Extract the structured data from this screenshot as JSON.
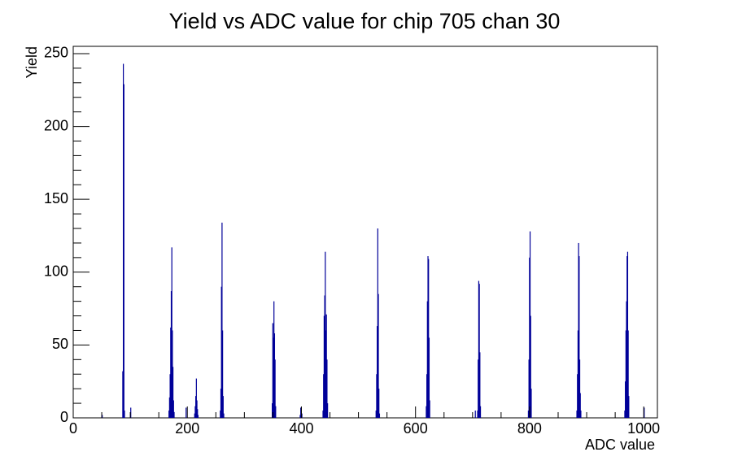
{
  "chart_data": {
    "type": "bar",
    "title": "Yield vs ADC value for chip 705 chan 30",
    "x_label": "ADC value",
    "y_label": "Yield",
    "color": "#000099",
    "x": [
      50,
      86,
      87,
      88,
      89,
      100,
      167,
      168,
      169,
      170,
      171,
      172,
      173,
      174,
      175,
      176,
      197,
      212,
      213,
      214,
      215,
      216,
      217,
      218,
      257,
      258,
      259,
      260,
      261,
      262,
      263,
      348,
      349,
      350,
      351,
      352,
      353,
      354,
      397,
      398,
      399,
      400,
      437,
      438,
      439,
      440,
      441,
      442,
      443,
      444,
      445,
      530,
      531,
      532,
      533,
      534,
      535,
      536,
      618,
      619,
      620,
      621,
      622,
      623,
      624,
      704,
      708,
      709,
      710,
      711,
      712,
      713,
      797,
      798,
      799,
      800,
      801,
      802,
      882,
      883,
      884,
      885,
      886,
      887,
      888,
      889,
      966,
      967,
      968,
      969,
      970,
      971,
      972,
      973,
      1000
    ],
    "values": [
      2,
      32,
      243,
      229,
      5,
      7,
      5,
      14,
      30,
      62,
      87,
      117,
      60,
      35,
      12,
      4,
      7,
      3,
      8,
      15,
      27,
      12,
      6,
      2,
      5,
      20,
      90,
      134,
      60,
      15,
      3,
      10,
      65,
      55,
      80,
      58,
      40,
      8,
      2,
      7,
      7,
      3,
      5,
      30,
      70,
      84,
      114,
      60,
      71,
      40,
      10,
      5,
      30,
      63,
      130,
      85,
      20,
      3,
      8,
      30,
      80,
      111,
      109,
      55,
      12,
      5,
      5,
      40,
      94,
      92,
      45,
      8,
      5,
      40,
      110,
      128,
      70,
      20,
      5,
      30,
      60,
      120,
      111,
      40,
      17,
      5,
      5,
      25,
      60,
      80,
      111,
      114,
      60,
      15,
      7
    ],
    "xlim": [
      0,
      1024
    ],
    "ylim": [
      0,
      255
    ],
    "xticks": [
      0,
      200,
      400,
      600,
      800,
      1000
    ],
    "xminorticks": [
      50,
      100,
      150,
      250,
      300,
      350,
      450,
      500,
      550,
      650,
      700,
      750,
      850,
      900,
      950
    ],
    "yticks": [
      0,
      50,
      100,
      150,
      200,
      250
    ],
    "yminorticks": [
      10,
      20,
      30,
      40,
      60,
      70,
      80,
      90,
      110,
      120,
      130,
      140,
      160,
      170,
      180,
      190,
      210,
      220,
      230,
      240
    ]
  }
}
